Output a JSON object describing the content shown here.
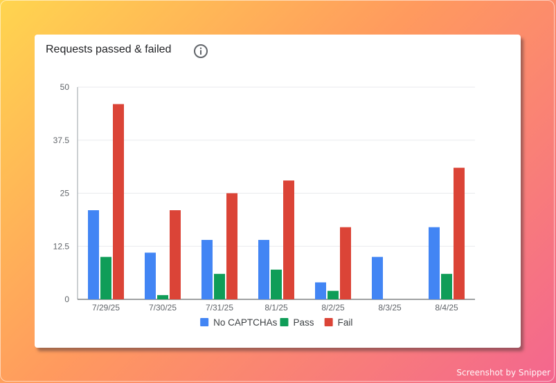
{
  "card": {
    "title": "Requests passed & failed",
    "info_icon": "info-icon"
  },
  "watermark": "Screenshot by Snipper",
  "chart_data": {
    "type": "bar",
    "categories": [
      "7/29/25",
      "7/30/25",
      "7/31/25",
      "8/1/25",
      "8/2/25",
      "8/3/25",
      "8/4/25"
    ],
    "series": [
      {
        "name": "No CAPTCHAs",
        "color": "#4285f4",
        "values": [
          21,
          11,
          14,
          14,
          4,
          10,
          17
        ]
      },
      {
        "name": "Pass",
        "color": "#0f9d58",
        "values": [
          10,
          1,
          6,
          7,
          2,
          0,
          6
        ]
      },
      {
        "name": "Fail",
        "color": "#db4437",
        "values": [
          46,
          21,
          25,
          28,
          17,
          0,
          31
        ]
      }
    ],
    "yticks": [
      "0",
      "12.5",
      "25",
      "37.5",
      "50"
    ],
    "ylim": [
      0,
      50
    ],
    "grid": true,
    "legend": "bottom"
  }
}
